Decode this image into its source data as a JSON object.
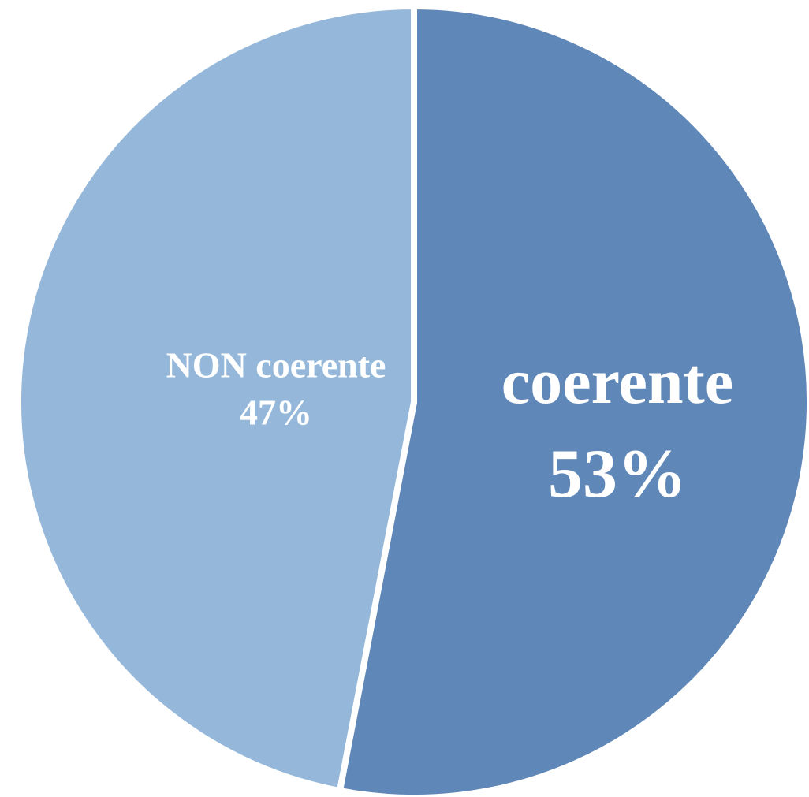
{
  "chart_data": {
    "type": "pie",
    "categories": [
      "coerente",
      "NON coerente"
    ],
    "values": [
      53,
      47
    ],
    "value_labels": [
      "53%",
      "47%"
    ],
    "colors": [
      "#5f87b8",
      "#95b8da"
    ]
  }
}
